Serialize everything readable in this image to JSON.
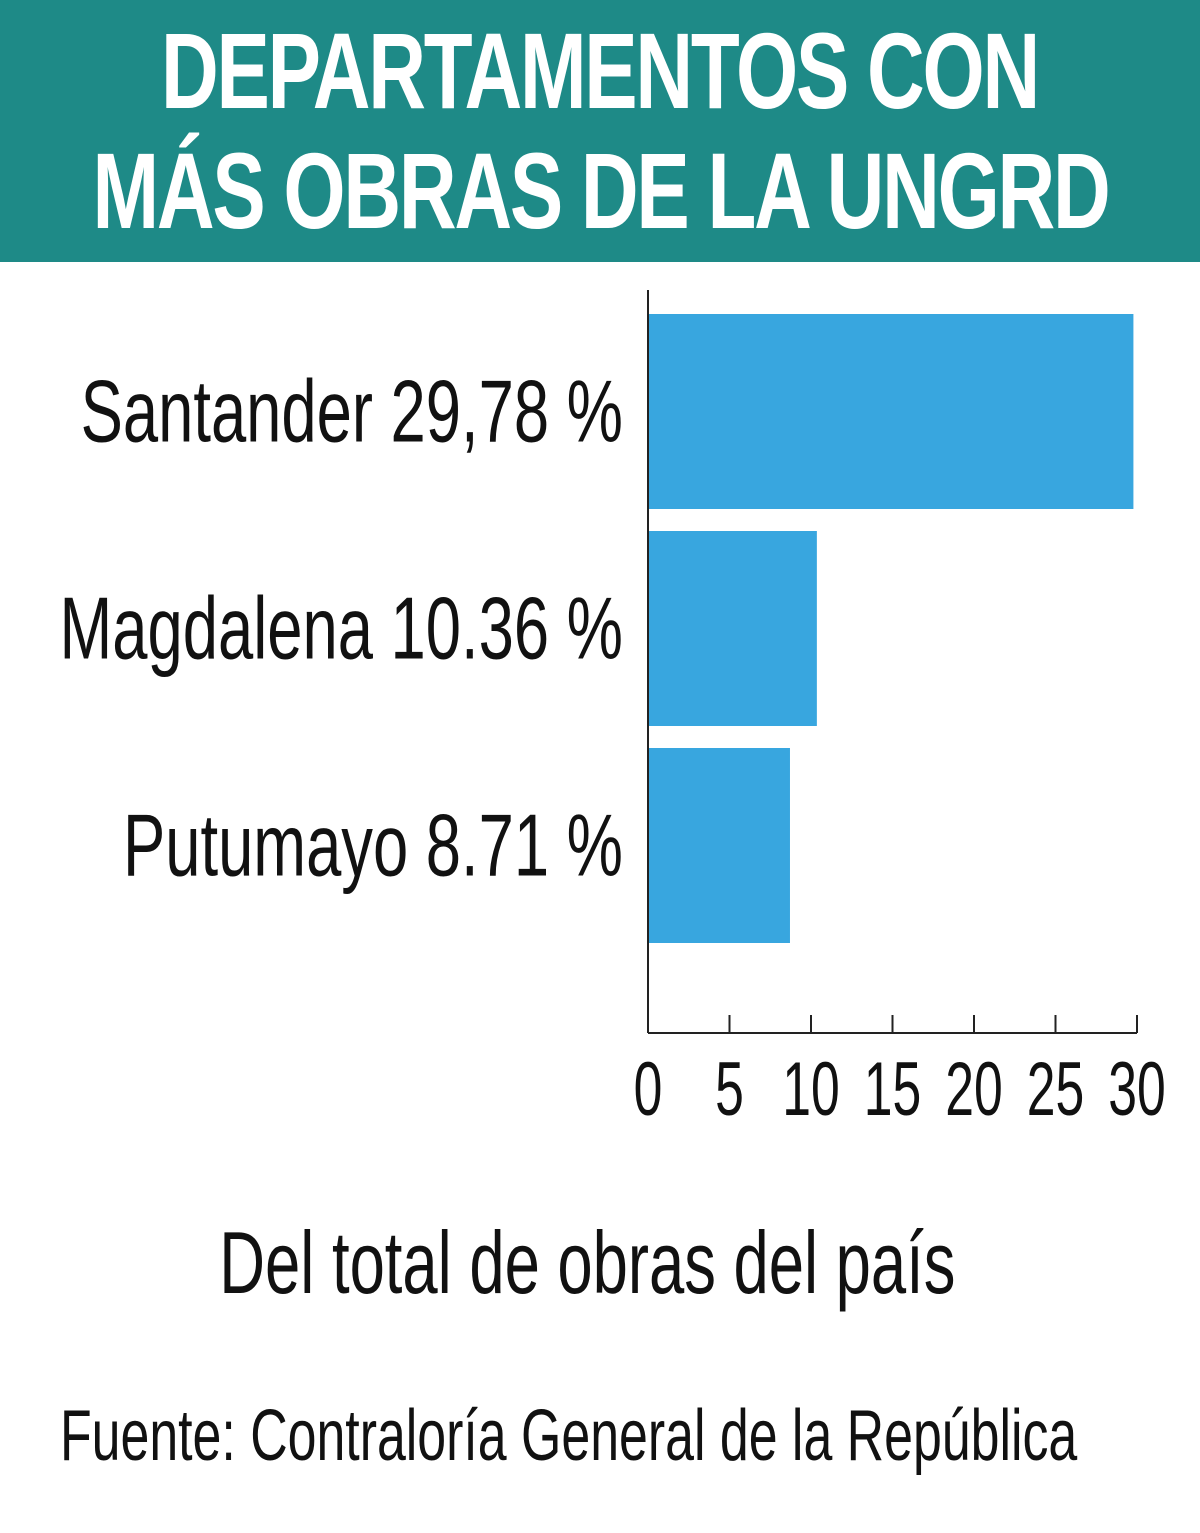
{
  "header": {
    "title_line1": "DEPARTAMENTOS CON",
    "title_line2": "MÁS OBRAS DE LA UNGRD"
  },
  "chart_data": {
    "type": "bar",
    "orientation": "horizontal",
    "categories": [
      "Santander 29,78 %",
      "Magdalena 10.36 %",
      "Putumayo 8.71 %"
    ],
    "values": [
      29.78,
      10.36,
      8.71
    ],
    "xlabel": "Del total de obras del país",
    "xlim": [
      0,
      30
    ],
    "xticks": [
      "0",
      "5",
      "10",
      "15",
      "20",
      "25",
      "30"
    ],
    "grid": false,
    "bar_color": "#38a6df"
  },
  "footer": {
    "source": "Fuente: Contraloría General de la República"
  },
  "colors": {
    "header_bg": "#1e8a87",
    "bar": "#38a6df"
  }
}
